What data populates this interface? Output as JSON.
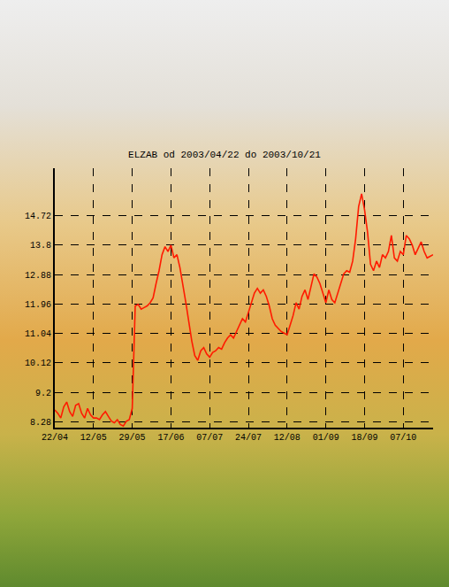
{
  "chart_data": {
    "type": "line",
    "title": "ELZAB od 2003/04/22 do 2003/10/21",
    "color": "#ff1a00",
    "grid": true,
    "categories": [
      "22/04",
      null,
      null,
      null,
      null,
      null,
      null,
      null,
      null,
      null,
      null,
      null,
      null,
      "12/05",
      null,
      null,
      null,
      null,
      null,
      null,
      null,
      null,
      null,
      null,
      null,
      null,
      "29/05",
      null,
      null,
      null,
      null,
      null,
      null,
      null,
      null,
      null,
      null,
      null,
      null,
      "17/06",
      null,
      null,
      null,
      null,
      null,
      null,
      null,
      null,
      null,
      null,
      null,
      null,
      "07/07",
      null,
      null,
      null,
      null,
      null,
      null,
      null,
      null,
      null,
      null,
      null,
      null,
      "24/07",
      null,
      null,
      null,
      null,
      null,
      null,
      null,
      null,
      null,
      null,
      null,
      null,
      "12/08",
      null,
      null,
      null,
      null,
      null,
      null,
      null,
      null,
      null,
      null,
      null,
      null,
      "01/09",
      null,
      null,
      null,
      null,
      null,
      null,
      null,
      null,
      null,
      null,
      null,
      null,
      "18/09",
      null,
      null,
      null,
      null,
      null,
      null,
      null,
      null,
      null,
      null,
      null,
      null,
      "07/10",
      null,
      null,
      null,
      null,
      null,
      null,
      null,
      null,
      null,
      null
    ],
    "values": [
      8.65,
      8.55,
      8.4,
      8.75,
      8.9,
      8.6,
      8.45,
      8.8,
      8.85,
      8.55,
      8.4,
      8.7,
      8.5,
      8.4,
      8.4,
      8.35,
      8.5,
      8.6,
      8.45,
      8.3,
      8.25,
      8.35,
      8.2,
      8.15,
      8.3,
      8.35,
      8.7,
      11.9,
      11.95,
      11.8,
      11.85,
      11.9,
      12.0,
      12.15,
      12.6,
      13.0,
      13.5,
      13.75,
      13.6,
      13.8,
      13.4,
      13.5,
      13.1,
      12.6,
      12.0,
      11.4,
      10.8,
      10.35,
      10.2,
      10.5,
      10.6,
      10.4,
      10.3,
      10.45,
      10.5,
      10.6,
      10.55,
      10.75,
      10.9,
      11.0,
      10.9,
      11.1,
      11.3,
      11.5,
      11.4,
      11.7,
      12.0,
      12.3,
      12.45,
      12.3,
      12.4,
      12.2,
      11.9,
      11.5,
      11.3,
      11.2,
      11.1,
      11.05,
      11.0,
      11.3,
      11.6,
      12.0,
      11.8,
      12.2,
      12.4,
      12.1,
      12.5,
      12.9,
      12.8,
      12.6,
      12.3,
      12.0,
      12.4,
      12.1,
      12.0,
      12.3,
      12.6,
      12.9,
      13.0,
      12.95,
      13.3,
      14.0,
      15.0,
      15.4,
      14.9,
      14.2,
      13.2,
      13.0,
      13.3,
      13.1,
      13.5,
      13.4,
      13.6,
      14.1,
      13.4,
      13.3,
      13.6,
      13.5,
      14.1,
      14.0,
      13.8,
      13.5,
      13.7,
      13.9,
      13.6,
      13.4,
      13.45,
      13.5
    ],
    "ylim": [
      8.1,
      16.2
    ],
    "yticks": [
      8.28,
      9.2,
      10.12,
      11.04,
      11.96,
      12.88,
      13.8,
      14.72
    ]
  }
}
